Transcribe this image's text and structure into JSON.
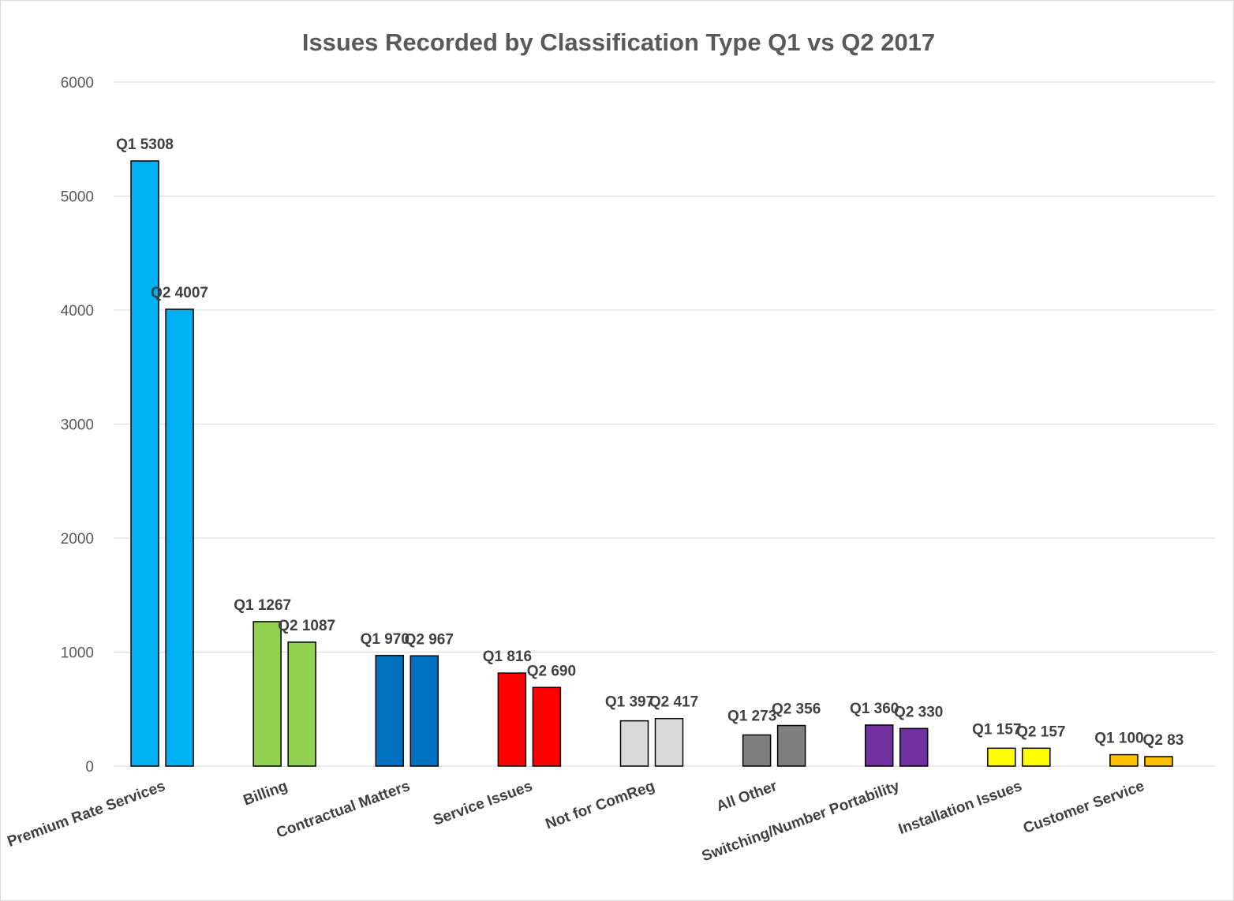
{
  "chart_data": {
    "type": "bar",
    "title": "Issues Recorded by Classification Type Q1 vs Q2 2017",
    "categories": [
      "Premium Rate Services",
      "Billing",
      "Contractual Matters",
      "Service Issues",
      "Not for ComReg",
      "All Other",
      "Switching/Number Portability",
      "Installation Issues",
      "Customer Service"
    ],
    "series": [
      {
        "values": [
          5308,
          1267,
          970,
          816,
          397,
          273,
          360,
          157,
          100
        ]
      },
      {
        "values": [
          4007,
          1087,
          967,
          690,
          417,
          356,
          330,
          157,
          83
        ]
      }
    ],
    "data_labels": [
      [
        "Q1 5308",
        "Q1 1267",
        "Q1 970",
        "Q1 816",
        "Q1 397",
        "Q1 273",
        "Q1 360",
        "Q1 157",
        "Q1 100"
      ],
      [
        "Q2 4007",
        "Q2 1087",
        "Q2 967",
        "Q2 690",
        "Q2 417",
        "Q2 356",
        "Q2 330",
        "Q2 157",
        "Q2 83"
      ]
    ],
    "category_colors": [
      "#00b0f0",
      "#92d050",
      "#0070c0",
      "#ff0000",
      "#d9d9d9",
      "#7f7f7f",
      "#7030a0",
      "#ffff00",
      "#ffc000"
    ],
    "yticks": [
      "0",
      "1000",
      "2000",
      "3000",
      "4000",
      "5000",
      "6000"
    ],
    "ylim": [
      0,
      6000
    ],
    "xlabel": "",
    "ylabel": "",
    "grid": true,
    "legend": "none"
  }
}
